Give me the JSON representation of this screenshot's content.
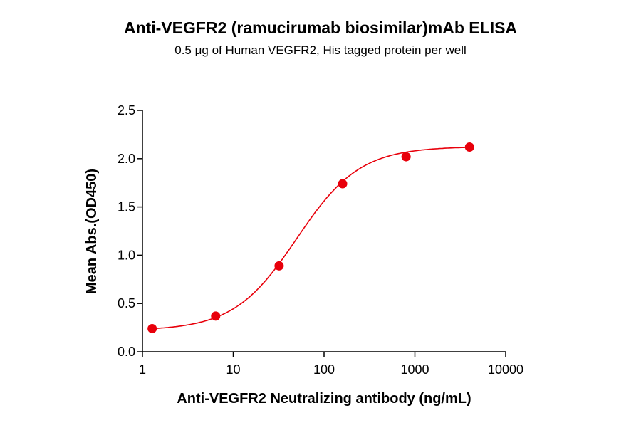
{
  "chart_data": {
    "type": "scatter",
    "title": "Anti-VEGFR2 (ramucirumab biosimilar)mAb ELISA",
    "subtitle": "0.5 μg of Human VEGFR2, His tagged protein per well",
    "xlabel": "Anti-VEGFR2 Neutralizing antibody  (ng/mL)",
    "ylabel": "Mean Abs.(OD450)",
    "xscale": "log",
    "xlim": [
      1,
      10000
    ],
    "ylim": [
      0,
      2.5
    ],
    "xticks": [
      "1",
      "10",
      "100",
      "1000",
      "10000"
    ],
    "yticks": [
      "0.0",
      "0.5",
      "1.0",
      "1.5",
      "2.0",
      "2.5"
    ],
    "grid": false,
    "fit_curve": "4-parameter logistic",
    "color": "#e8000b",
    "series": [
      {
        "x": [
          1.28,
          6.4,
          32,
          160,
          800,
          4000
        ],
        "y": [
          0.24,
          0.37,
          0.89,
          1.74,
          2.02,
          2.12
        ]
      }
    ]
  }
}
